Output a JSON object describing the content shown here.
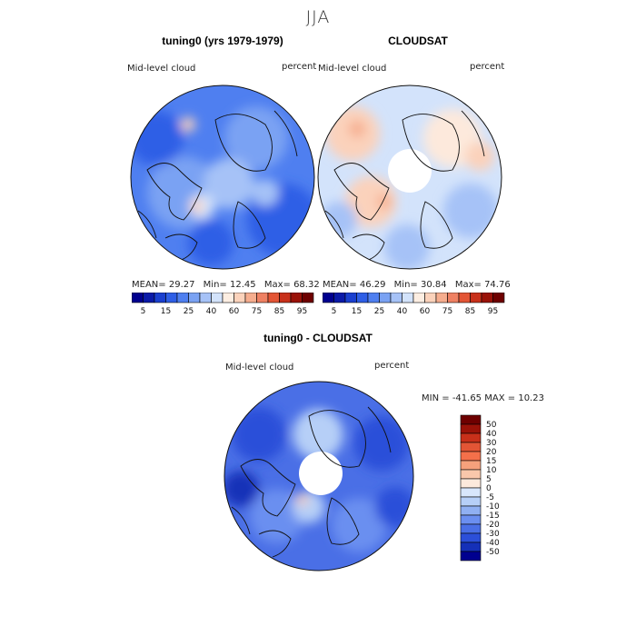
{
  "season": "JJA",
  "panels": [
    {
      "title": "tuning0 (yrs 1979-1979)",
      "variable": "Mid-level cloud",
      "units": "percent",
      "stats": {
        "mean_label": "MEAN=",
        "mean": "29.27",
        "min_label": "Min=",
        "min": "12.45",
        "max_label": "Max=",
        "max": "68.32"
      }
    },
    {
      "title": "CLOUDSAT",
      "variable": "Mid-level cloud",
      "units": "percent",
      "stats": {
        "mean_label": "MEAN=",
        "mean": "46.29",
        "min_label": "Min=",
        "min": "30.84",
        "max_label": "Max=",
        "max": "74.76"
      }
    }
  ],
  "abs_colorbar": {
    "colors": [
      "#00008f",
      "#0a1aa8",
      "#1a3fcf",
      "#2e5ee6",
      "#4f7ff0",
      "#7aa2f3",
      "#a6c2f7",
      "#d3e3fb",
      "#fdeee2",
      "#fbd2bb",
      "#f6ad8e",
      "#ef8163",
      "#e35535",
      "#c8301a",
      "#9a1208",
      "#6e0000"
    ],
    "tick_labels": [
      "5",
      "15",
      "25",
      "40",
      "60",
      "75",
      "85",
      "95"
    ]
  },
  "diff_panel": {
    "title": "tuning0 - CLOUDSAT",
    "variable": "Mid-level cloud",
    "units": "percent",
    "min_label": "MIN =",
    "min": "-41.65",
    "max_label": "MAX =",
    "max": "10.23"
  },
  "diff_colorbar": {
    "colors": [
      "#6e0000",
      "#9a1208",
      "#c8301a",
      "#e35535",
      "#f4704a",
      "#f6a17c",
      "#f9c7ab",
      "#fde9dc",
      "#d8e6fb",
      "#b6cff7",
      "#90b0f2",
      "#6b8ff0",
      "#4a6fe6",
      "#2c4fd9",
      "#1530b8",
      "#00008f"
    ],
    "tick_labels": [
      "50",
      "40",
      "30",
      "20",
      "15",
      "10",
      "5",
      "0",
      "-5",
      "-10",
      "-15",
      "-20",
      "-30",
      "-40",
      "-50"
    ]
  }
}
